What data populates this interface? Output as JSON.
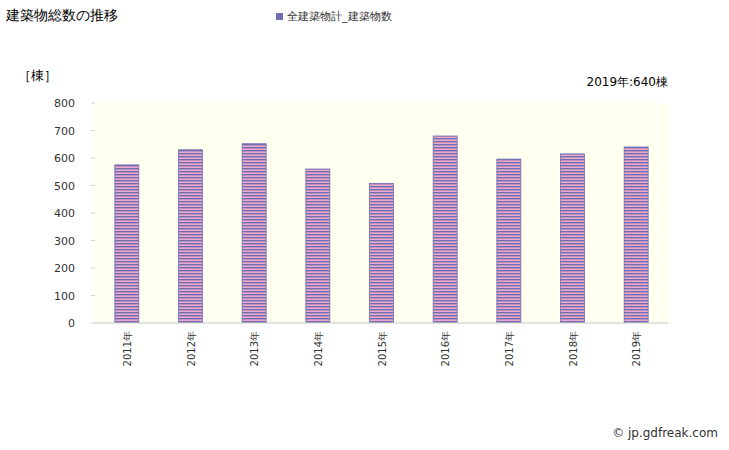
{
  "chart_data": {
    "type": "bar",
    "title": "建築物総数の推移",
    "y_label": "［棟］",
    "annotations": [
      "2019年:640棟"
    ],
    "source": "© jp.gdfreak.com",
    "categories": [
      "2011年",
      "2012年",
      "2013年",
      "2014年",
      "2015年",
      "2016年",
      "2017年",
      "2018年",
      "2019年"
    ],
    "series": [
      {
        "name": "全建築物計_建築物数",
        "color": "#6e6eb4",
        "values": [
          575,
          630,
          652,
          560,
          507,
          680,
          596,
          615,
          640
        ]
      }
    ],
    "ylim": [
      0,
      800
    ],
    "yticks": [
      0,
      100,
      200,
      300,
      400,
      500,
      600,
      700,
      800
    ],
    "grid": false,
    "legend": "top"
  }
}
